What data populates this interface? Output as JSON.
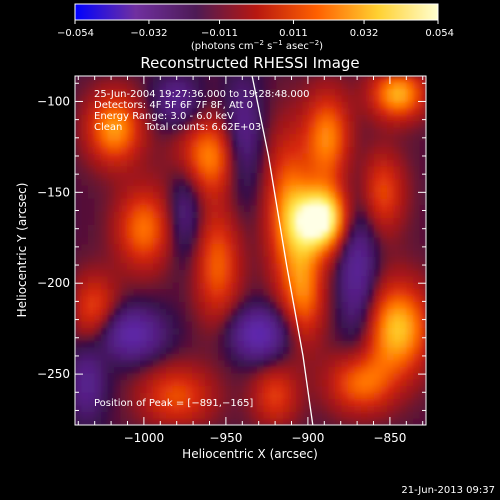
{
  "chart_data": {
    "type": "heatmap",
    "title": "Reconstructed RHESSI Image",
    "xlabel": "Heliocentric X (arcsec)",
    "ylabel": "Heliocentric Y (arcsec)",
    "xlim": [
      -1042,
      -828
    ],
    "ylim": [
      -278,
      -86
    ],
    "x_ticks": [
      -1000,
      -950,
      -900,
      -850
    ],
    "x_tick_labels": [
      "−1000",
      "−950",
      "−900",
      "−850"
    ],
    "y_ticks": [
      -100,
      -150,
      -200,
      -250
    ],
    "y_tick_labels": [
      "−100",
      "−150",
      "−200",
      "−250"
    ],
    "colorbar": {
      "min": -0.054,
      "max": 0.054,
      "ticks": [
        -0.054,
        -0.032,
        -0.011,
        0.011,
        0.032,
        0.054
      ],
      "tick_labels": [
        "−0.054",
        "−0.032",
        "−0.011",
        "0.011",
        "0.032",
        "0.054"
      ],
      "unit_prefix": "(photons cm",
      "unit_exp1": "−2",
      "unit_mid1": " s",
      "unit_exp2": "−1",
      "unit_mid2": " asec",
      "unit_exp3": "−2",
      "unit_suffix": ")",
      "colormap": [
        "#0000ff",
        "#7030a0",
        "#4d1a55",
        "#b81810",
        "#ff6000",
        "#ffd030",
        "#ffffd0"
      ]
    },
    "annotations": {
      "time_range": "25-Jun-2004 19:27:36.000 to 19:28:48.000",
      "detectors": "Detectors: 4F 5F 6F 7F 8F, Att 0",
      "energy_range": "Energy Range: 3.0 - 6.0 keV",
      "method": "Clean",
      "total_counts": "Total counts: 6.62E+03",
      "peak": "Position of Peak = [−891,−165]"
    },
    "peak_position": [
      -891,
      -165
    ],
    "limb_line": [
      [
        -934,
        -86
      ],
      [
        -924,
        -130
      ],
      [
        -913,
        -190
      ],
      [
        -903,
        -240
      ],
      [
        -897,
        -278
      ]
    ],
    "features": [
      {
        "kind": "emission",
        "x": -891,
        "y": -165,
        "amplitude": 1.0,
        "sx": 12,
        "sy": 13
      },
      {
        "kind": "emission",
        "x": -912,
        "y": -160,
        "amplitude": 0.55,
        "sx": 10,
        "sy": 30
      },
      {
        "kind": "emission",
        "x": -888,
        "y": -120,
        "amplitude": 0.6,
        "sx": 10,
        "sy": 18
      },
      {
        "kind": "emission",
        "x": -845,
        "y": -96,
        "amplitude": 0.7,
        "sx": 12,
        "sy": 10
      },
      {
        "kind": "emission",
        "x": -855,
        "y": -150,
        "amplitude": 0.45,
        "sx": 10,
        "sy": 16
      },
      {
        "kind": "emission",
        "x": -845,
        "y": -225,
        "amplitude": 0.75,
        "sx": 14,
        "sy": 18
      },
      {
        "kind": "emission",
        "x": -868,
        "y": -255,
        "amplitude": 0.55,
        "sx": 14,
        "sy": 12
      },
      {
        "kind": "emission",
        "x": -902,
        "y": -205,
        "amplitude": 0.5,
        "sx": 9,
        "sy": 20
      },
      {
        "kind": "emission",
        "x": -960,
        "y": -130,
        "amplitude": 0.6,
        "sx": 14,
        "sy": 15
      },
      {
        "kind": "emission",
        "x": -955,
        "y": -190,
        "amplitude": 0.5,
        "sx": 10,
        "sy": 22
      },
      {
        "kind": "emission",
        "x": -1018,
        "y": -115,
        "amplitude": 0.65,
        "sx": 12,
        "sy": 14
      },
      {
        "kind": "emission",
        "x": -1000,
        "y": -170,
        "amplitude": 0.55,
        "sx": 12,
        "sy": 16
      },
      {
        "kind": "emission",
        "x": -1030,
        "y": -215,
        "amplitude": 0.45,
        "sx": 10,
        "sy": 14
      },
      {
        "kind": "emission",
        "x": -980,
        "y": -262,
        "amplitude": 0.45,
        "sx": 16,
        "sy": 12
      },
      {
        "kind": "emission",
        "x": -920,
        "y": -262,
        "amplitude": 0.4,
        "sx": 10,
        "sy": 12
      },
      {
        "kind": "absorption",
        "x": -1008,
        "y": -228,
        "amplitude": -0.6,
        "sx": 14,
        "sy": 10
      },
      {
        "kind": "absorption",
        "x": -930,
        "y": -228,
        "amplitude": -0.65,
        "sx": 12,
        "sy": 10
      },
      {
        "kind": "absorption",
        "x": -940,
        "y": -120,
        "amplitude": -0.45,
        "sx": 8,
        "sy": 22
      },
      {
        "kind": "absorption",
        "x": -870,
        "y": -190,
        "amplitude": -0.5,
        "sx": 8,
        "sy": 30
      },
      {
        "kind": "absorption",
        "x": -980,
        "y": -100,
        "amplitude": -0.4,
        "sx": 10,
        "sy": 10
      },
      {
        "kind": "absorption",
        "x": -1035,
        "y": -255,
        "amplitude": -0.4,
        "sx": 8,
        "sy": 14
      },
      {
        "kind": "absorption",
        "x": -975,
        "y": -160,
        "amplitude": -0.35,
        "sx": 7,
        "sy": 18
      }
    ]
  },
  "footer": {
    "timestamp": "21-Jun-2013 09:37"
  }
}
